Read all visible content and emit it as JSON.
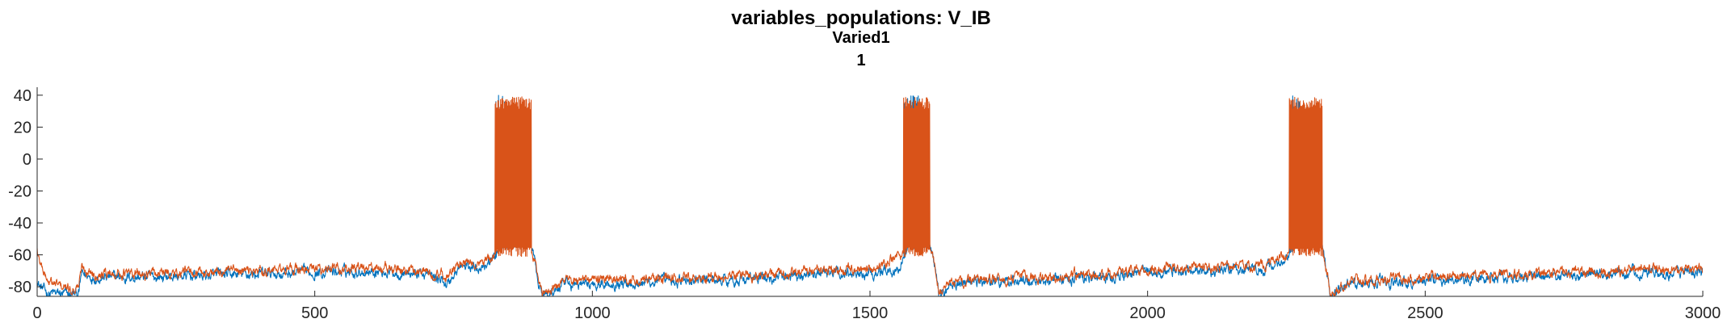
{
  "chart_data": {
    "type": "line",
    "title": "variables_populations: V_IB",
    "subtitle": "Varied1",
    "subtitle2": "1",
    "xlabel": "",
    "ylabel": "",
    "xlim": [
      0,
      3000
    ],
    "ylim": [
      -86,
      45
    ],
    "x_ticks": [
      0,
      500,
      1000,
      1500,
      2000,
      2500,
      3000
    ],
    "x_tick_labels": [
      "0",
      "500",
      "1000",
      "1500",
      "2000",
      "2500",
      "3000"
    ],
    "y_ticks": [
      -80,
      -60,
      -40,
      -20,
      0,
      20,
      40
    ],
    "y_tick_labels": [
      "-80",
      "-60",
      "-40",
      "-20",
      "0",
      "20",
      "40"
    ],
    "grid": false,
    "legend": "none",
    "bursts": [
      {
        "start": 825,
        "end": 890
      },
      {
        "start": 1560,
        "end": 1608
      },
      {
        "start": 2255,
        "end": 2315
      }
    ],
    "series": [
      {
        "color": "#0072BD",
        "x": [
          0,
          5,
          20,
          60,
          75,
          80,
          100,
          200,
          300,
          400,
          500,
          600,
          700,
          740,
          760,
          800,
          825,
          830,
          860,
          890,
          900,
          910,
          950,
          1000,
          1100,
          1200,
          1300,
          1400,
          1500,
          1550,
          1560,
          1570,
          1608,
          1620,
          1625,
          1650,
          1700,
          1800,
          1900,
          2000,
          2100,
          2200,
          2250,
          2255,
          2270,
          2315,
          2325,
          2330,
          2360,
          2400,
          2500,
          2600,
          2700,
          2800,
          2900,
          3000
        ],
        "y": [
          -75,
          -80,
          -84,
          -85,
          -84,
          -72,
          -74,
          -74,
          -73,
          -72,
          -71,
          -70,
          -72,
          -78,
          -68,
          -67,
          -62,
          -56,
          -54,
          -53,
          -72,
          -86,
          -79,
          -78,
          -77,
          -76,
          -75,
          -72,
          -71,
          -70,
          -62,
          -55,
          -54,
          -75,
          -86,
          -78,
          -77,
          -76,
          -74,
          -71,
          -70,
          -69,
          -65,
          -60,
          -53,
          -54,
          -76,
          -86,
          -79,
          -78,
          -76,
          -75,
          -74,
          -72,
          -71,
          -71
        ]
      },
      {
        "color": "#D95319",
        "x": [
          0,
          2,
          20,
          60,
          75,
          80,
          100,
          200,
          300,
          400,
          500,
          600,
          700,
          740,
          760,
          800,
          825,
          890,
          900,
          910,
          950,
          1000,
          1100,
          1200,
          1300,
          1400,
          1500,
          1560,
          1608,
          1620,
          1625,
          1650,
          1700,
          1800,
          1900,
          2000,
          2100,
          2200,
          2255,
          2315,
          2325,
          2330,
          2360,
          2400,
          2500,
          2600,
          2700,
          2800,
          2900,
          3000
        ],
        "y": [
          -56,
          -62,
          -77,
          -82,
          -79,
          -68,
          -71,
          -72,
          -71,
          -70,
          -69,
          -68,
          -70,
          -74,
          -66,
          -65,
          -60,
          -58,
          -70,
          -84,
          -77,
          -76,
          -75,
          -74,
          -73,
          -70,
          -69,
          -60,
          -58,
          -72,
          -84,
          -77,
          -76,
          -74,
          -72,
          -69,
          -68,
          -67,
          -60,
          -58,
          -74,
          -84,
          -78,
          -76,
          -74,
          -73,
          -72,
          -70,
          -69,
          -69
        ]
      }
    ]
  }
}
